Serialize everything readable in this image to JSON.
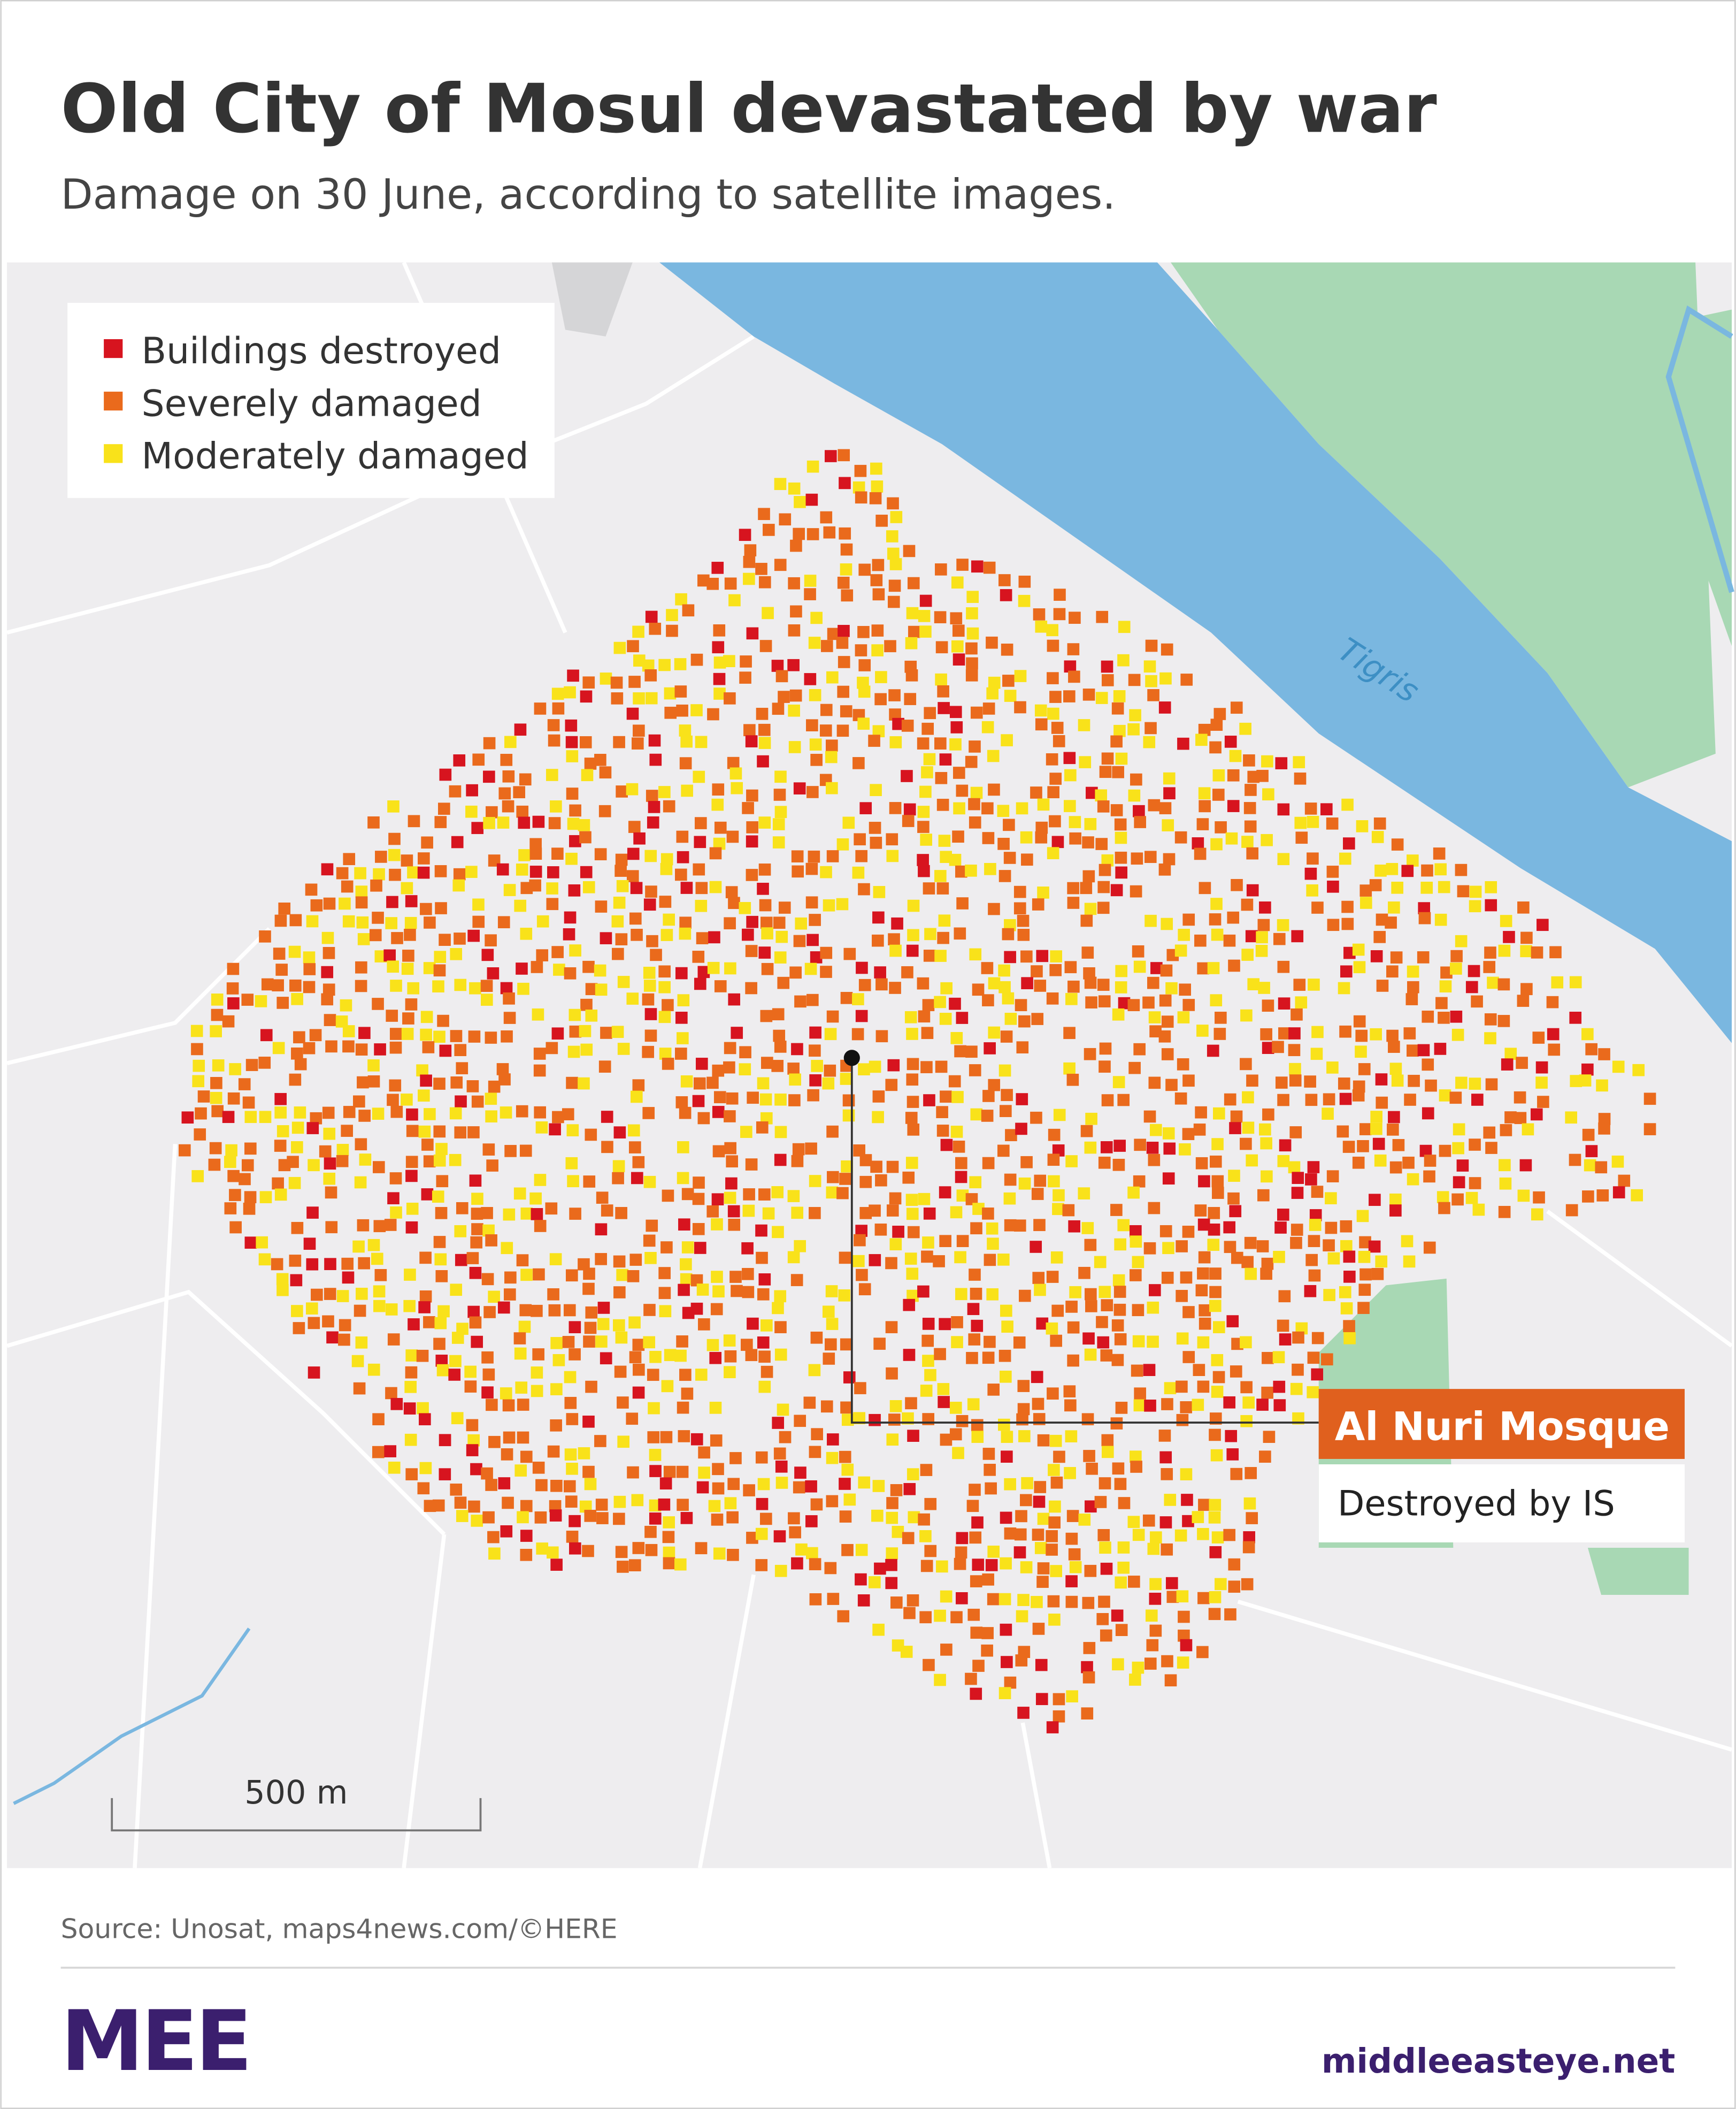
{
  "header": {
    "title": "Old City of Mosul devastated by war",
    "subtitle": "Damage on 30 June, according to satellite images."
  },
  "legend": [
    "Buildings destroyed",
    "Severely damaged",
    "Moderately damaged"
  ],
  "map": {
    "river_label": "Tigris",
    "scale_label": "500 m",
    "annotation": {
      "title": "Al Nuri Mosque",
      "subtitle": "Destroyed by IS"
    }
  },
  "footer": {
    "source": "Source: Unosat, maps4news.com/©HERE",
    "logo": "MEE",
    "site": "middleeasteye.net"
  }
}
